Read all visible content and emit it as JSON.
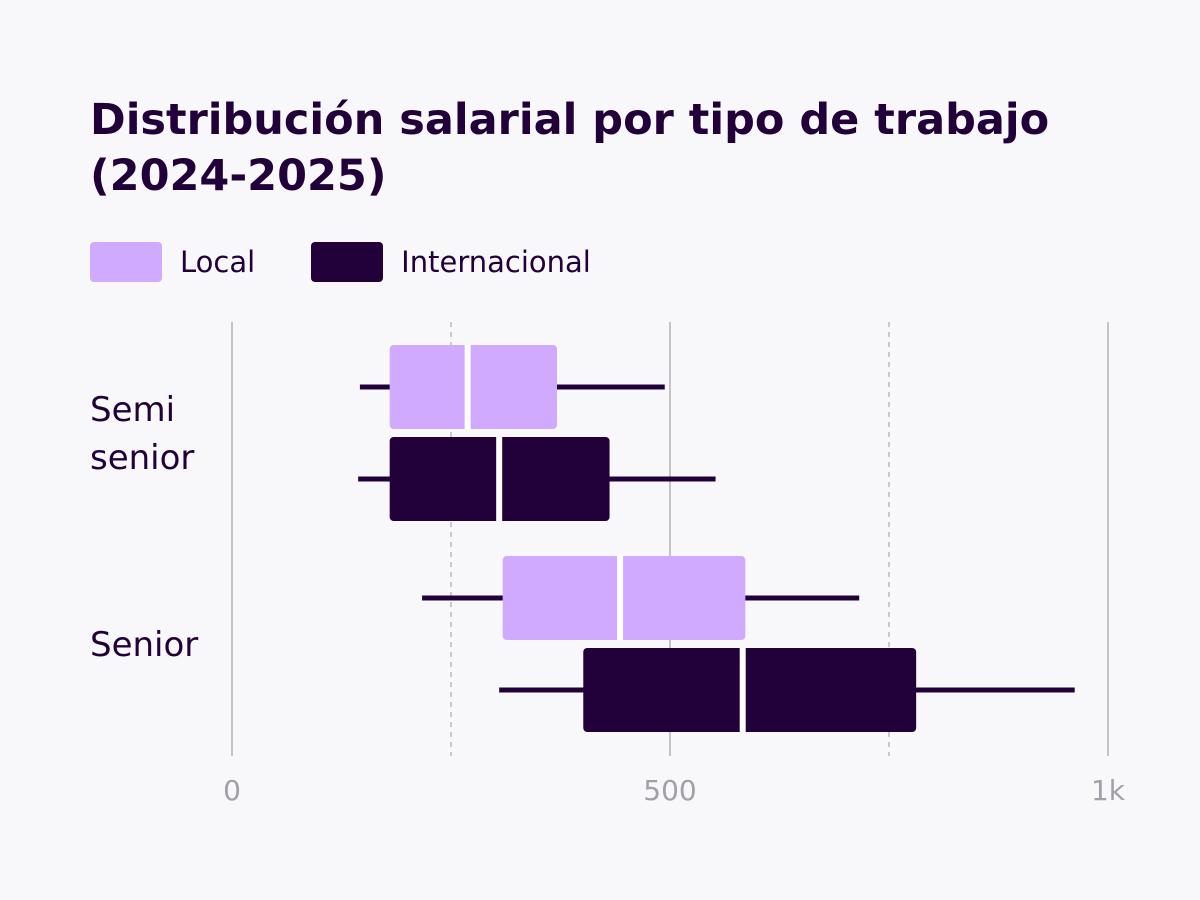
{
  "chart_data": {
    "type": "boxplot",
    "orientation": "horizontal",
    "title": "Distribución salarial por tipo de trabajo (2024-2025)",
    "xlabel": "",
    "ylabel": "",
    "xlim": [
      0,
      1000
    ],
    "ticks": [
      {
        "value": 0,
        "label": "0"
      },
      {
        "value": 500,
        "label": "500"
      },
      {
        "value": 1000,
        "label": "1k"
      }
    ],
    "minor_gridlines": [
      250,
      750
    ],
    "grid": true,
    "legend_placement": "top-left",
    "categories": [
      {
        "label_lines": [
          "Semi",
          "senior"
        ]
      },
      {
        "label_lines": [
          "Senior"
        ]
      }
    ],
    "series": [
      {
        "name": "Local",
        "color": "#d0aaff",
        "boxes": [
          {
            "min": 146,
            "q1": 180,
            "median": 269,
            "q3": 371,
            "max": 494
          },
          {
            "min": 217,
            "q1": 309,
            "median": 443,
            "q3": 586,
            "max": 716
          }
        ]
      },
      {
        "name": "Internacional",
        "color": "#22003a",
        "boxes": [
          {
            "min": 144,
            "q1": 180,
            "median": 305,
            "q3": 431,
            "max": 552
          },
          {
            "min": 305,
            "q1": 401,
            "median": 583,
            "q3": 781,
            "max": 962
          }
        ]
      }
    ]
  }
}
